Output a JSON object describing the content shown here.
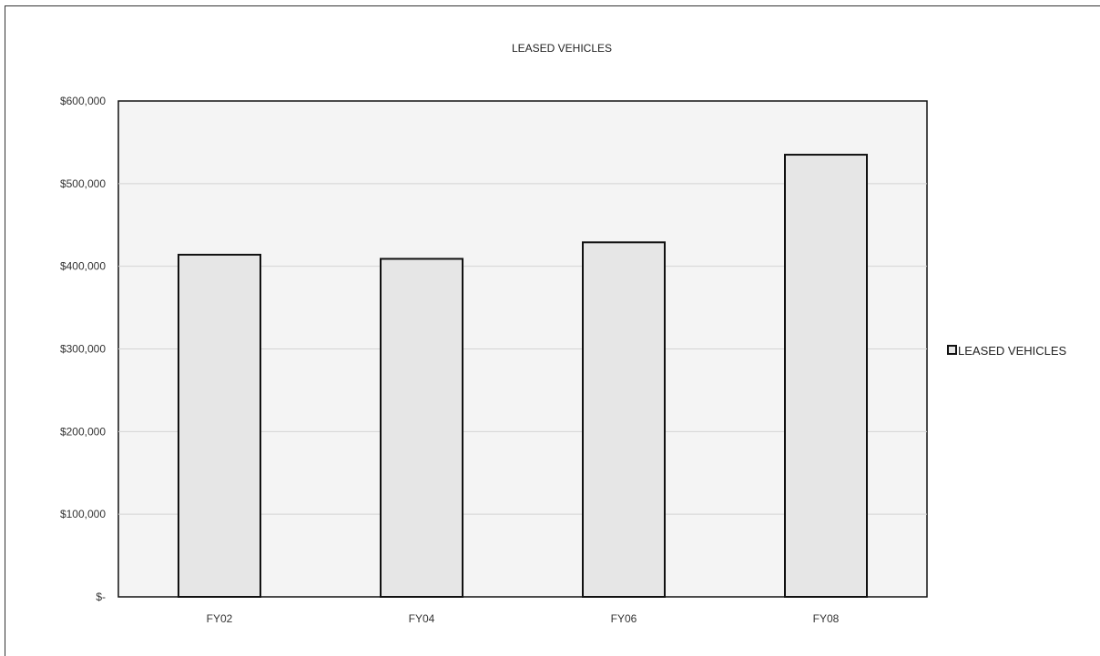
{
  "chart_data": {
    "type": "bar",
    "title": "LEASED VEHICLES",
    "categories": [
      "FY02",
      "FY04",
      "FY06",
      "FY08"
    ],
    "series": [
      {
        "name": "LEASED VEHICLES",
        "values": [
          414000,
          409000,
          429000,
          535000
        ]
      }
    ],
    "ylim": [
      0,
      600000
    ],
    "yticks": [
      0,
      100000,
      200000,
      300000,
      400000,
      500000,
      600000
    ],
    "ytick_labels": [
      "$-",
      "$100,000",
      "$200,000",
      "$300,000",
      "$400,000",
      "$500,000",
      "$600,000"
    ],
    "grid": true,
    "legend": "right",
    "colors": {
      "bar_fill": "#e6e6e6",
      "bar_stroke": "#111111",
      "plot_bg": "#f4f4f4",
      "grid": "#d4d4d4"
    }
  }
}
